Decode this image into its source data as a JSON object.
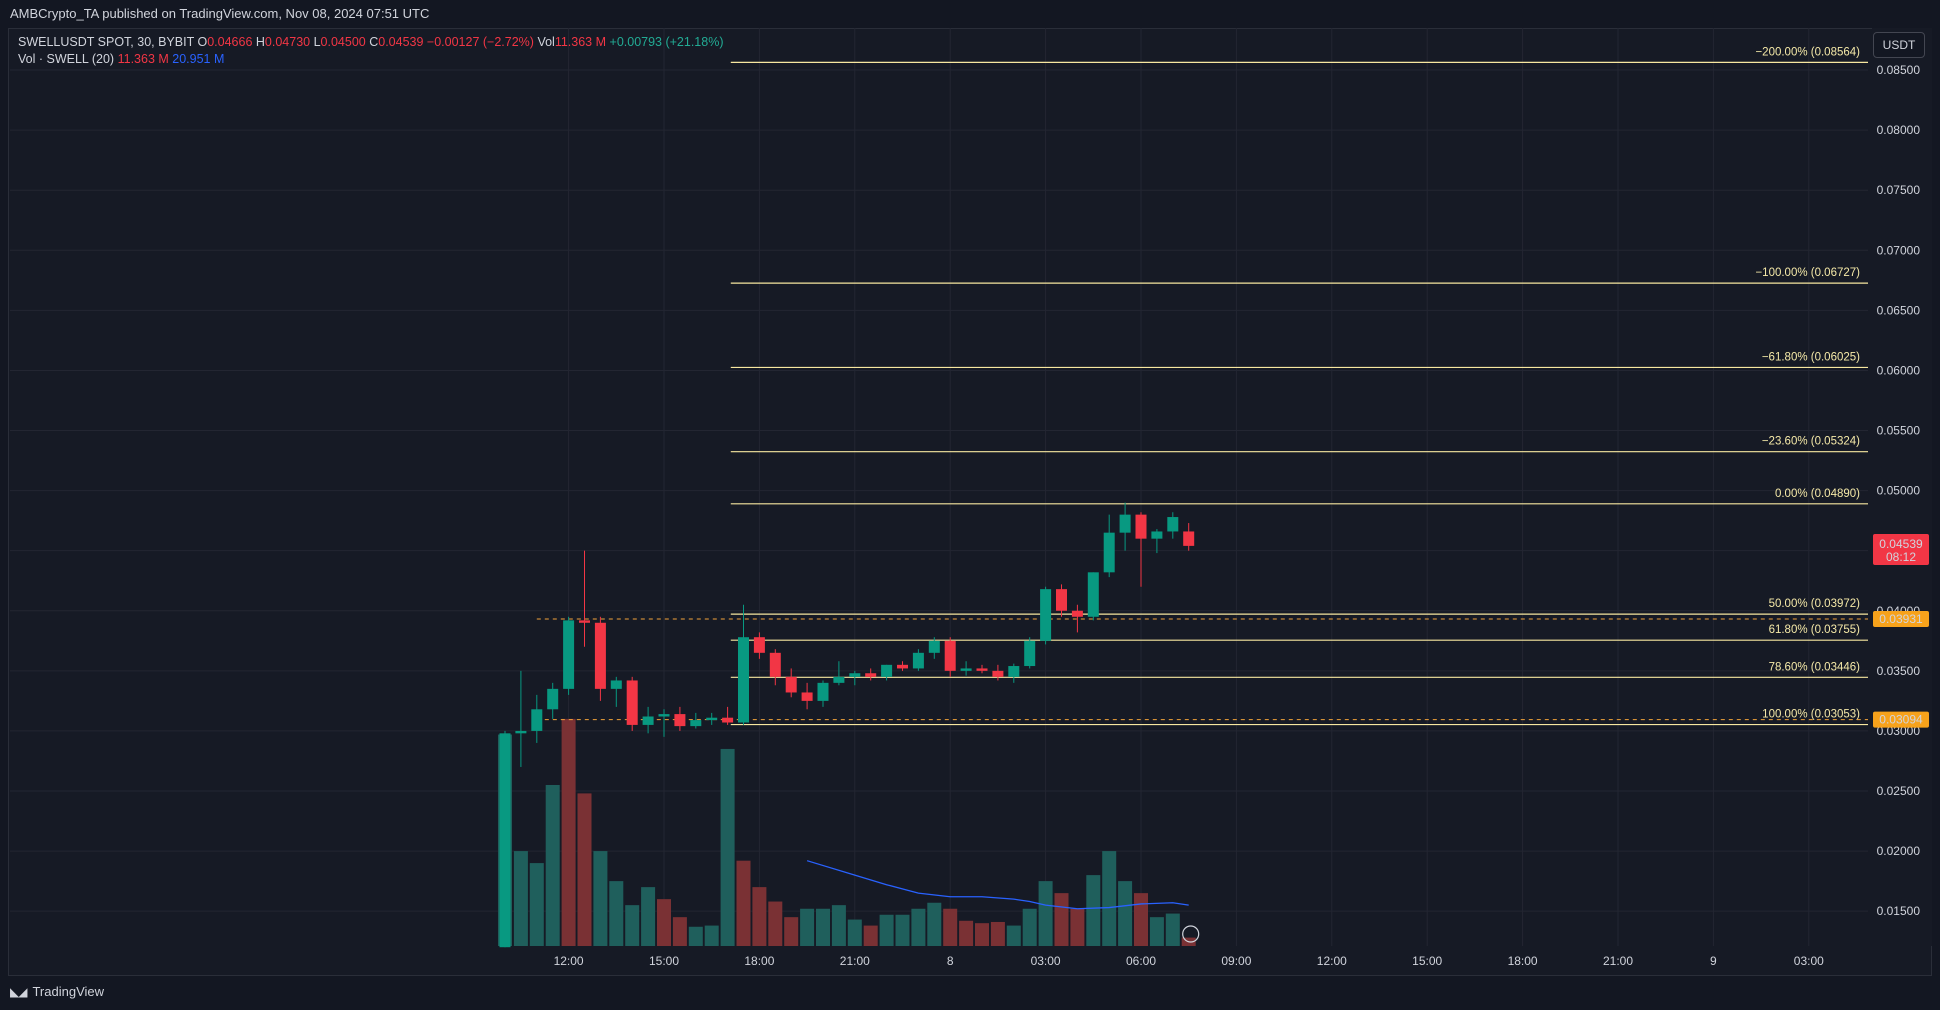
{
  "header": {
    "published_text": "AMBCrypto_TA published on TradingView.com, Nov 08, 2024 07:51 UTC"
  },
  "legend": {
    "symbol": "SWELLUSDT SPOT, 30, BYBIT",
    "o_label": "O",
    "o_value": "0.04666",
    "h_label": "H",
    "h_value": "0.04730",
    "l_label": "L",
    "l_value": "0.04500",
    "c_label": "C",
    "c_value": "0.04539",
    "change": "−0.00127 (−2.72%)",
    "vol_label": "Vol",
    "vol_value": "11.363 M",
    "vol_change": "+0.00793 (+21.18%)",
    "vol_indicator": "Vol · SWELL (20)",
    "vol_indicator_value": "11.363 M",
    "vol_ma_value": "20.951 M"
  },
  "currency_button": "USDT",
  "branding": "TradingView",
  "colors": {
    "up": "#089981",
    "down": "#f23645",
    "volume_up": "#1f5f5c",
    "volume_down": "#7a3134",
    "fib": "#f7e7a0",
    "dashed": "#f2a33a",
    "ma": "#2962ff",
    "price_tag": "#f23645",
    "level_tag": "#f7a21b"
  },
  "chart_data": {
    "type": "candlestick",
    "title": "SWELLUSDT SPOT, 30, BYBIT",
    "ylim": [
      0.0121,
      0.0885
    ],
    "y_ticks": [
      "0.01500",
      "0.02000",
      "0.02500",
      "0.03000",
      "0.03500",
      "0.04000",
      "0.04500",
      "0.05000",
      "0.05500",
      "0.06000",
      "0.06500",
      "0.07000",
      "0.07500",
      "0.08000",
      "0.08500"
    ],
    "x_ticks": [
      {
        "label": "12:00",
        "index": 4
      },
      {
        "label": "15:00",
        "index": 10
      },
      {
        "label": "18:00",
        "index": 16
      },
      {
        "label": "21:00",
        "index": 22
      },
      {
        "label": "8",
        "index": 28
      },
      {
        "label": "03:00",
        "index": 34
      },
      {
        "label": "06:00",
        "index": 40
      },
      {
        "label": "09:00",
        "index": 46
      },
      {
        "label": "12:00",
        "index": 52
      },
      {
        "label": "15:00",
        "index": 58
      },
      {
        "label": "18:00",
        "index": 64
      },
      {
        "label": "21:00",
        "index": 70
      },
      {
        "label": "9",
        "index": 76
      },
      {
        "label": "03:00",
        "index": 82
      }
    ],
    "candles": [
      {
        "o": 0.012,
        "h": 0.03,
        "l": 0.012,
        "c": 0.0298
      },
      {
        "o": 0.0298,
        "h": 0.035,
        "l": 0.027,
        "c": 0.03
      },
      {
        "o": 0.03,
        "h": 0.033,
        "l": 0.029,
        "c": 0.0318
      },
      {
        "o": 0.0318,
        "h": 0.034,
        "l": 0.031,
        "c": 0.0335
      },
      {
        "o": 0.0335,
        "h": 0.0395,
        "l": 0.033,
        "c": 0.0392
      },
      {
        "o": 0.0392,
        "h": 0.045,
        "l": 0.037,
        "c": 0.039
      },
      {
        "o": 0.039,
        "h": 0.0395,
        "l": 0.0325,
        "c": 0.0335
      },
      {
        "o": 0.0335,
        "h": 0.0345,
        "l": 0.032,
        "c": 0.0342
      },
      {
        "o": 0.0342,
        "h": 0.0345,
        "l": 0.03,
        "c": 0.0305
      },
      {
        "o": 0.0305,
        "h": 0.032,
        "l": 0.0298,
        "c": 0.0312
      },
      {
        "o": 0.0312,
        "h": 0.0318,
        "l": 0.0295,
        "c": 0.0314
      },
      {
        "o": 0.0314,
        "h": 0.032,
        "l": 0.03,
        "c": 0.0304
      },
      {
        "o": 0.0304,
        "h": 0.0315,
        "l": 0.0302,
        "c": 0.0309
      },
      {
        "o": 0.0309,
        "h": 0.0315,
        "l": 0.0305,
        "c": 0.0311
      },
      {
        "o": 0.0311,
        "h": 0.032,
        "l": 0.0305,
        "c": 0.0307
      },
      {
        "o": 0.0307,
        "h": 0.0405,
        "l": 0.0305,
        "c": 0.0378
      },
      {
        "o": 0.0378,
        "h": 0.0382,
        "l": 0.036,
        "c": 0.0365
      },
      {
        "o": 0.0365,
        "h": 0.0368,
        "l": 0.0338,
        "c": 0.0345
      },
      {
        "o": 0.0345,
        "h": 0.0352,
        "l": 0.0328,
        "c": 0.0332
      },
      {
        "o": 0.0332,
        "h": 0.034,
        "l": 0.0318,
        "c": 0.0325
      },
      {
        "o": 0.0325,
        "h": 0.0342,
        "l": 0.032,
        "c": 0.034
      },
      {
        "o": 0.034,
        "h": 0.0358,
        "l": 0.0338,
        "c": 0.0345
      },
      {
        "o": 0.0345,
        "h": 0.035,
        "l": 0.0338,
        "c": 0.0348
      },
      {
        "o": 0.0348,
        "h": 0.0352,
        "l": 0.0342,
        "c": 0.0345
      },
      {
        "o": 0.0345,
        "h": 0.0355,
        "l": 0.0342,
        "c": 0.0355
      },
      {
        "o": 0.0355,
        "h": 0.0358,
        "l": 0.035,
        "c": 0.0352
      },
      {
        "o": 0.0352,
        "h": 0.0368,
        "l": 0.035,
        "c": 0.0365
      },
      {
        "o": 0.0365,
        "h": 0.0378,
        "l": 0.036,
        "c": 0.0375
      },
      {
        "o": 0.0375,
        "h": 0.0378,
        "l": 0.0345,
        "c": 0.035
      },
      {
        "o": 0.035,
        "h": 0.0358,
        "l": 0.0346,
        "c": 0.0352
      },
      {
        "o": 0.0352,
        "h": 0.0355,
        "l": 0.0348,
        "c": 0.035
      },
      {
        "o": 0.035,
        "h": 0.0355,
        "l": 0.0342,
        "c": 0.0345
      },
      {
        "o": 0.0345,
        "h": 0.0356,
        "l": 0.034,
        "c": 0.0354
      },
      {
        "o": 0.0354,
        "h": 0.0378,
        "l": 0.0352,
        "c": 0.0375
      },
      {
        "o": 0.0375,
        "h": 0.042,
        "l": 0.0372,
        "c": 0.0418
      },
      {
        "o": 0.0418,
        "h": 0.0422,
        "l": 0.0395,
        "c": 0.04
      },
      {
        "o": 0.04,
        "h": 0.0405,
        "l": 0.0382,
        "c": 0.0395
      },
      {
        "o": 0.0395,
        "h": 0.0432,
        "l": 0.0392,
        "c": 0.0432
      },
      {
        "o": 0.0432,
        "h": 0.048,
        "l": 0.0428,
        "c": 0.0465
      },
      {
        "o": 0.0465,
        "h": 0.049,
        "l": 0.045,
        "c": 0.048
      },
      {
        "o": 0.048,
        "h": 0.0482,
        "l": 0.042,
        "c": 0.046
      },
      {
        "o": 0.046,
        "h": 0.0468,
        "l": 0.0448,
        "c": 0.0466
      },
      {
        "o": 0.0466,
        "h": 0.0482,
        "l": 0.046,
        "c": 0.0478
      },
      {
        "o": 0.0466,
        "h": 0.0473,
        "l": 0.045,
        "c": 0.0454
      }
    ],
    "volumes": [
      {
        "v": 0.0297,
        "up": true
      },
      {
        "v": 0.02,
        "up": true
      },
      {
        "v": 0.019,
        "up": true
      },
      {
        "v": 0.0255,
        "up": true
      },
      {
        "v": 0.031,
        "up": false
      },
      {
        "v": 0.0248,
        "up": false
      },
      {
        "v": 0.02,
        "up": true
      },
      {
        "v": 0.0175,
        "up": true
      },
      {
        "v": 0.0155,
        "up": true
      },
      {
        "v": 0.017,
        "up": true
      },
      {
        "v": 0.016,
        "up": false
      },
      {
        "v": 0.0145,
        "up": false
      },
      {
        "v": 0.0137,
        "up": true
      },
      {
        "v": 0.0138,
        "up": true
      },
      {
        "v": 0.0285,
        "up": true
      },
      {
        "v": 0.0192,
        "up": false
      },
      {
        "v": 0.017,
        "up": false
      },
      {
        "v": 0.0158,
        "up": false
      },
      {
        "v": 0.0145,
        "up": false
      },
      {
        "v": 0.0152,
        "up": true
      },
      {
        "v": 0.0152,
        "up": true
      },
      {
        "v": 0.0155,
        "up": true
      },
      {
        "v": 0.0143,
        "up": true
      },
      {
        "v": 0.0138,
        "up": false
      },
      {
        "v": 0.0147,
        "up": true
      },
      {
        "v": 0.0147,
        "up": true
      },
      {
        "v": 0.0152,
        "up": true
      },
      {
        "v": 0.0157,
        "up": true
      },
      {
        "v": 0.0152,
        "up": false
      },
      {
        "v": 0.0142,
        "up": false
      },
      {
        "v": 0.014,
        "up": false
      },
      {
        "v": 0.0141,
        "up": false
      },
      {
        "v": 0.0138,
        "up": true
      },
      {
        "v": 0.0152,
        "up": true
      },
      {
        "v": 0.0175,
        "up": true
      },
      {
        "v": 0.0165,
        "up": false
      },
      {
        "v": 0.0152,
        "up": false
      },
      {
        "v": 0.018,
        "up": true
      },
      {
        "v": 0.02,
        "up": true
      },
      {
        "v": 0.0175,
        "up": true
      },
      {
        "v": 0.0165,
        "up": false
      },
      {
        "v": 0.0145,
        "up": true
      },
      {
        "v": 0.0148,
        "up": true
      },
      {
        "v": 0.0128,
        "up": false
      }
    ],
    "volume_ma": [
      [
        19,
        0.0192
      ],
      [
        22,
        0.018
      ],
      [
        24,
        0.0172
      ],
      [
        26,
        0.0165
      ],
      [
        28,
        0.0162
      ],
      [
        30,
        0.0162
      ],
      [
        32,
        0.016
      ],
      [
        33,
        0.0158
      ],
      [
        34,
        0.0155
      ],
      [
        36,
        0.0152
      ],
      [
        38,
        0.0153
      ],
      [
        40,
        0.0156
      ],
      [
        42,
        0.0157
      ],
      [
        43,
        0.0155
      ]
    ],
    "fib_levels": [
      {
        "label": "−200.00% (0.08564)",
        "value": 0.08564
      },
      {
        "label": "−100.00% (0.06727)",
        "value": 0.06727
      },
      {
        "label": "−61.80% (0.06025)",
        "value": 0.06025
      },
      {
        "label": "−23.60% (0.05324)",
        "value": 0.05324
      },
      {
        "label": "0.00% (0.04890)",
        "value": 0.0489
      },
      {
        "label": "50.00% (0.03972)",
        "value": 0.03972
      },
      {
        "label": "61.80% (0.03755)",
        "value": 0.03755
      },
      {
        "label": "78.60% (0.03446)",
        "value": 0.03446
      },
      {
        "label": "100.00% (0.03053)",
        "value": 0.03053
      }
    ],
    "dashed_levels": [
      {
        "value": 0.03931,
        "label": "0.03931"
      },
      {
        "value": 0.03094,
        "label": "0.03094"
      }
    ],
    "current_price": {
      "value": 0.04539,
      "label": "0.04539",
      "countdown": "08:12"
    }
  }
}
